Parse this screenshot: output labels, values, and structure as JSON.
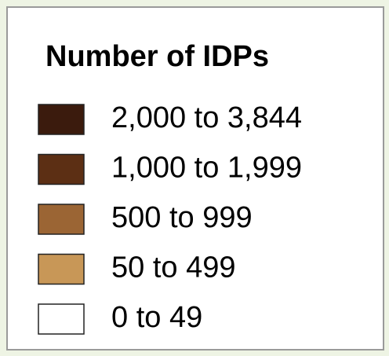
{
  "legend": {
    "title": "Number of IDPs",
    "items": [
      {
        "label": "2,000 to 3,844",
        "color": "#3b1b0d"
      },
      {
        "label": "1,000 to 1,999",
        "color": "#5c2f14"
      },
      {
        "label": "500 to 999",
        "color": "#9b6534"
      },
      {
        "label": "50 to 499",
        "color": "#c89757"
      },
      {
        "label": "0 to 49",
        "color": "#ffffff"
      }
    ]
  }
}
